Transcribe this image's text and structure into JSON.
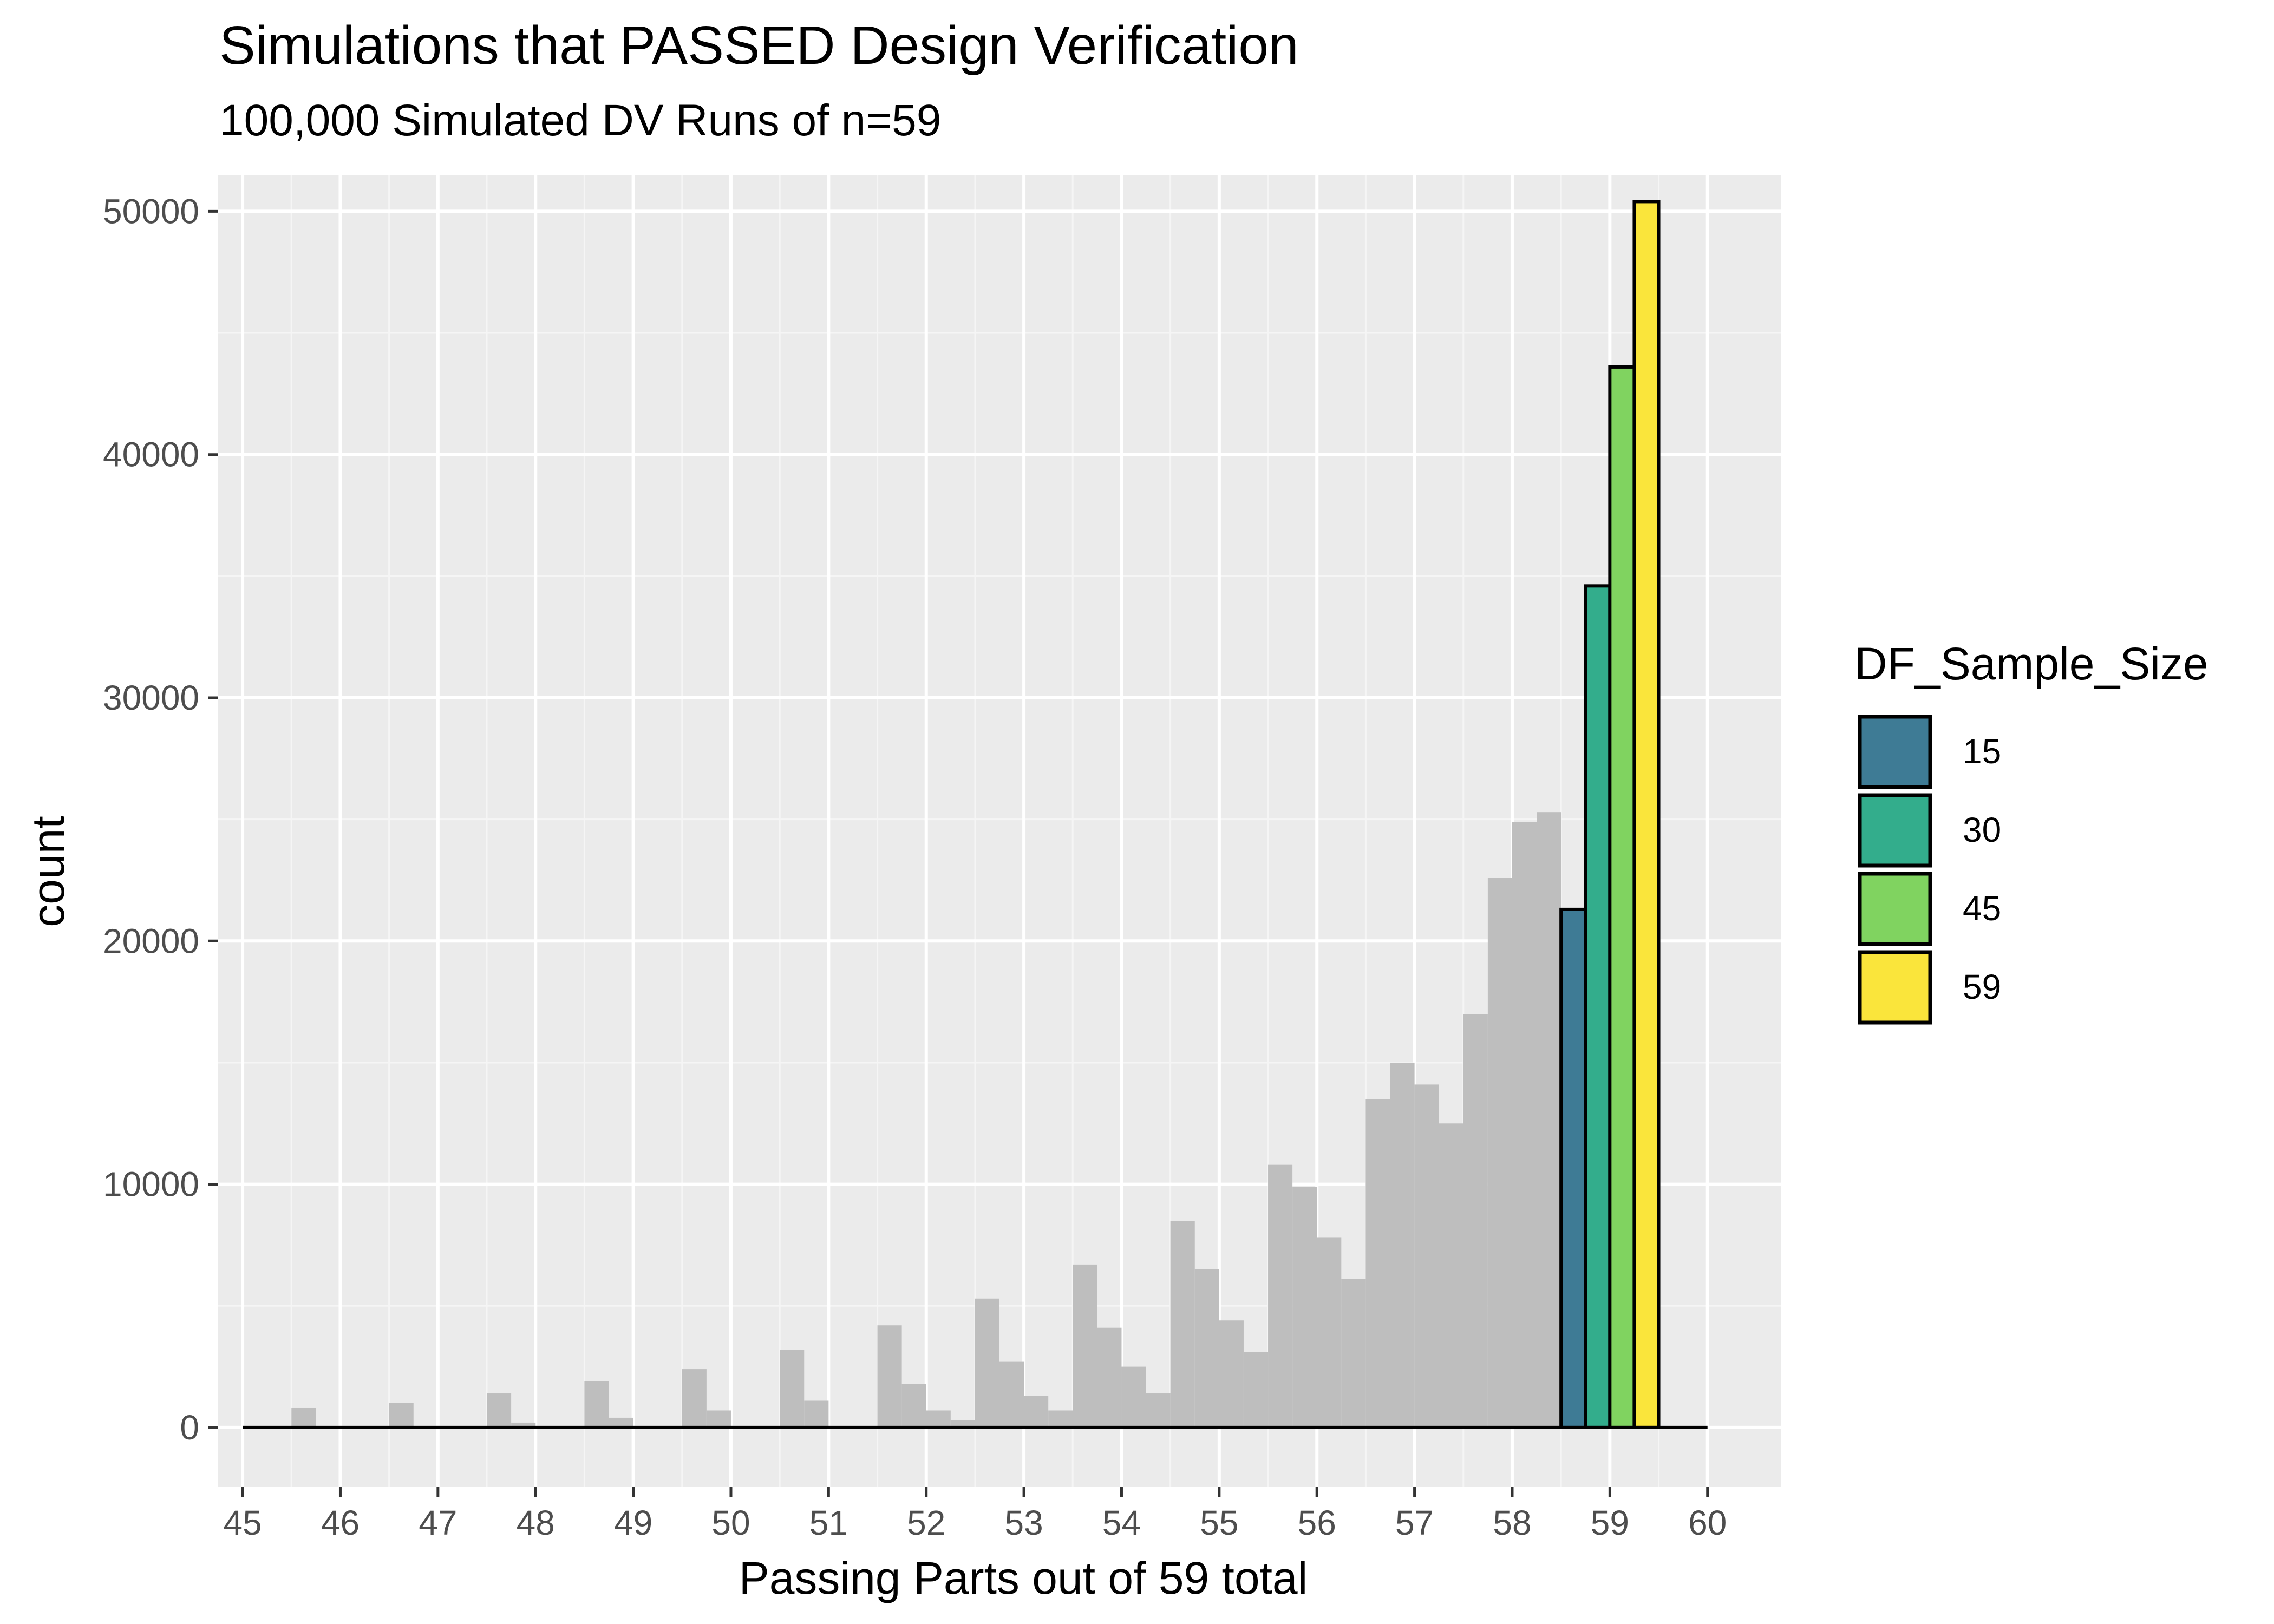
{
  "chart_data": {
    "type": "bar",
    "title": "Simulations that PASSED Design Verification",
    "subtitle": "100,000 Simulated DV Runs of n=59",
    "xlabel": "Passing Parts out of 59 total",
    "ylabel": "count",
    "xlim": [
      44.75,
      60.75
    ],
    "ylim": [
      -2450,
      51500
    ],
    "x_ticks": [
      "45",
      "46",
      "47",
      "48",
      "49",
      "50",
      "51",
      "52",
      "53",
      "54",
      "55",
      "56",
      "57",
      "58",
      "59",
      "60"
    ],
    "y_ticks": [
      "0",
      "10000",
      "20000",
      "30000",
      "40000",
      "50000"
    ],
    "grid": true,
    "legend_position": "right",
    "background_bars": {
      "color": "#BEBEBE",
      "bin_width": 0.25,
      "x_start": 45,
      "x_end": 60,
      "values": [
        0,
        0,
        800,
        0,
        0,
        0,
        1000,
        0,
        0,
        0,
        1400,
        200,
        0,
        0,
        1900,
        400,
        0,
        0,
        2400,
        700,
        0,
        0,
        3200,
        1100,
        0,
        0,
        4200,
        1800,
        700,
        300,
        5300,
        2700,
        1300,
        700,
        6700,
        4100,
        2500,
        1400,
        8500,
        6500,
        4400,
        3100,
        10800,
        9900,
        7800,
        6100,
        13500,
        15000,
        14100,
        12500,
        17000,
        22600,
        24900,
        25300,
        0,
        0,
        0,
        0,
        0,
        0
      ]
    },
    "highlighted_bars": [
      {
        "x": 58.625,
        "width": 0.25,
        "value": 21300,
        "group": "15"
      },
      {
        "x": 58.875,
        "width": 0.25,
        "value": 34600,
        "group": "30"
      },
      {
        "x": 59.125,
        "width": 0.25,
        "value": 43600,
        "group": "45"
      },
      {
        "x": 59.375,
        "width": 0.25,
        "value": 50400,
        "group": "59"
      }
    ],
    "legend": {
      "title": "DF_Sample_Size",
      "items": [
        {
          "label": "15",
          "color": "#3E7B95"
        },
        {
          "label": "30",
          "color": "#33AD8C"
        },
        {
          "label": "45",
          "color": "#80D360"
        },
        {
          "label": "59",
          "color": "#FAE53B"
        }
      ]
    },
    "colors": {
      "panel_background": "#EBEBEB",
      "grid_major": "#FFFFFF",
      "grid_minor": "#F5F5F5",
      "axis_text": "#4D4D4D",
      "bar_outline": "#000000"
    }
  }
}
